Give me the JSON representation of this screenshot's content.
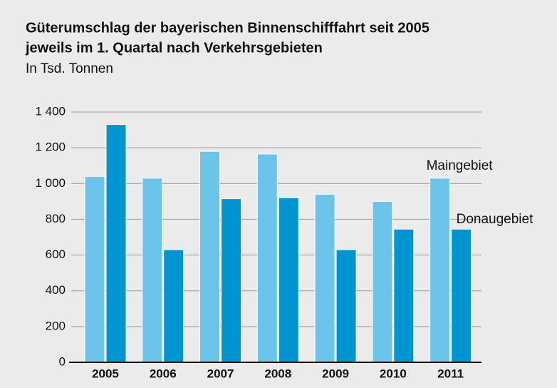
{
  "chart_data": {
    "type": "bar",
    "title": "Güterumschlag der bayerischen Binnenschifffahrt seit 2005",
    "subtitle": "jeweils im 1. Quartal nach Verkehrsgebieten",
    "unit": "In Tsd. Tonnen",
    "categories": [
      "2005",
      "2006",
      "2007",
      "2008",
      "2009",
      "2010",
      "2011"
    ],
    "series": [
      {
        "name": "Maingebiet",
        "color": "#6cc4ea",
        "values": [
          1040,
          1030,
          1180,
          1165,
          940,
          900,
          1030
        ]
      },
      {
        "name": "Donaugebiet",
        "color": "#0095d0",
        "values": [
          1330,
          630,
          915,
          920,
          630,
          745,
          745
        ]
      }
    ],
    "ylim": [
      0,
      1400
    ],
    "yticks": [
      0,
      200,
      400,
      600,
      800,
      {
        "value": 1000,
        "label": "1 000"
      },
      {
        "value": 1200,
        "label": "1 200"
      },
      {
        "value": 1400,
        "label": "1 400"
      }
    ],
    "grid": true
  }
}
